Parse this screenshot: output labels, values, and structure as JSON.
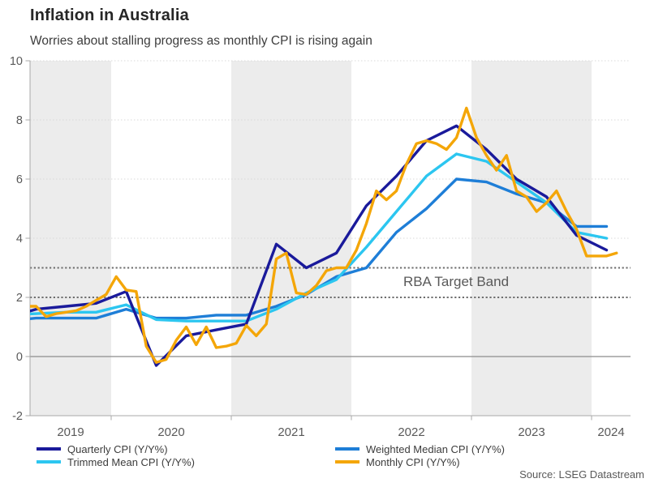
{
  "header": {
    "title": "Inflation in Australia",
    "subtitle": "Worries about stalling progress as monthly CPI is rising again"
  },
  "source": "Source: LSEG Datastream",
  "chart_data": {
    "type": "line",
    "xlim": [
      2019.3243,
      2024.3243
    ],
    "ylim": [
      -2,
      10
    ],
    "yticks": [
      -2,
      0,
      2,
      4,
      6,
      8,
      10
    ],
    "grid_values": [
      4,
      6,
      8,
      10
    ],
    "zero_line": 0,
    "xticks": [
      2020,
      2021,
      2022,
      2023,
      2024
    ],
    "year_labels": [
      "2019",
      "2020",
      "2021",
      "2022",
      "2023",
      "2024"
    ],
    "shaded_years": [
      2019,
      2021,
      2023
    ],
    "target_band": {
      "low": 2,
      "high": 3,
      "label": "RBA Target Band"
    },
    "colors": {
      "band": "#ececec",
      "grid": "#d9d9d9",
      "zero": "#8c8c8c",
      "axis": "#a8a8a8",
      "target": "#6e6e6e",
      "tick_text": "#595959"
    },
    "draw_order": [
      2,
      1,
      0,
      3
    ],
    "series": [
      {
        "name": "Quarterly CPI (Y/Y%)",
        "color": "#1a1a9b",
        "freq": "quarterly",
        "start": 2019.125,
        "step": 0.25,
        "values": [
          1.3,
          1.6,
          1.7,
          1.8,
          2.2,
          -0.3,
          0.7,
          0.9,
          1.1,
          3.8,
          3.0,
          3.5,
          5.1,
          6.1,
          7.3,
          7.8,
          7.0,
          6.0,
          5.4,
          4.1,
          3.6
        ]
      },
      {
        "name": "Trimmed Mean CPI (Y/Y%)",
        "color": "#2cc6f0",
        "freq": "quarterly",
        "start": 2019.125,
        "step": 0.25,
        "values": [
          1.4,
          1.45,
          1.5,
          1.5,
          1.75,
          1.25,
          1.2,
          1.2,
          1.2,
          1.6,
          2.15,
          2.6,
          3.7,
          4.9,
          6.1,
          6.85,
          6.6,
          5.9,
          5.2,
          4.2,
          4.0
        ]
      },
      {
        "name": "Weighted Median CPI (Y/Y%)",
        "color": "#1e7ed7",
        "freq": "quarterly",
        "start": 2019.125,
        "step": 0.25,
        "values": [
          1.2,
          1.3,
          1.3,
          1.3,
          1.6,
          1.3,
          1.3,
          1.4,
          1.4,
          1.7,
          2.1,
          2.7,
          3.0,
          4.2,
          5.0,
          6.0,
          5.9,
          5.5,
          5.2,
          4.4,
          4.4
        ]
      },
      {
        "name": "Monthly CPI (Y/Y%)",
        "color": "#f4a608",
        "freq": "monthly",
        "start": 2019.2917,
        "step": 0.0833333,
        "values": [
          1.7,
          1.7,
          1.35,
          1.45,
          1.5,
          1.55,
          1.7,
          1.9,
          2.1,
          2.7,
          2.25,
          2.2,
          0.35,
          -0.2,
          -0.1,
          0.55,
          1.0,
          0.4,
          1.0,
          0.3,
          0.35,
          0.45,
          1.05,
          0.7,
          1.1,
          3.3,
          3.5,
          2.15,
          2.1,
          2.4,
          2.9,
          3.0,
          3.0,
          3.6,
          4.5,
          5.6,
          5.3,
          5.6,
          6.5,
          7.2,
          7.3,
          7.2,
          7.0,
          7.4,
          8.4,
          7.4,
          6.8,
          6.3,
          6.8,
          5.6,
          5.4,
          4.9,
          5.2,
          5.6,
          4.9,
          4.3,
          3.4,
          3.4,
          3.4,
          3.5
        ]
      }
    ]
  }
}
